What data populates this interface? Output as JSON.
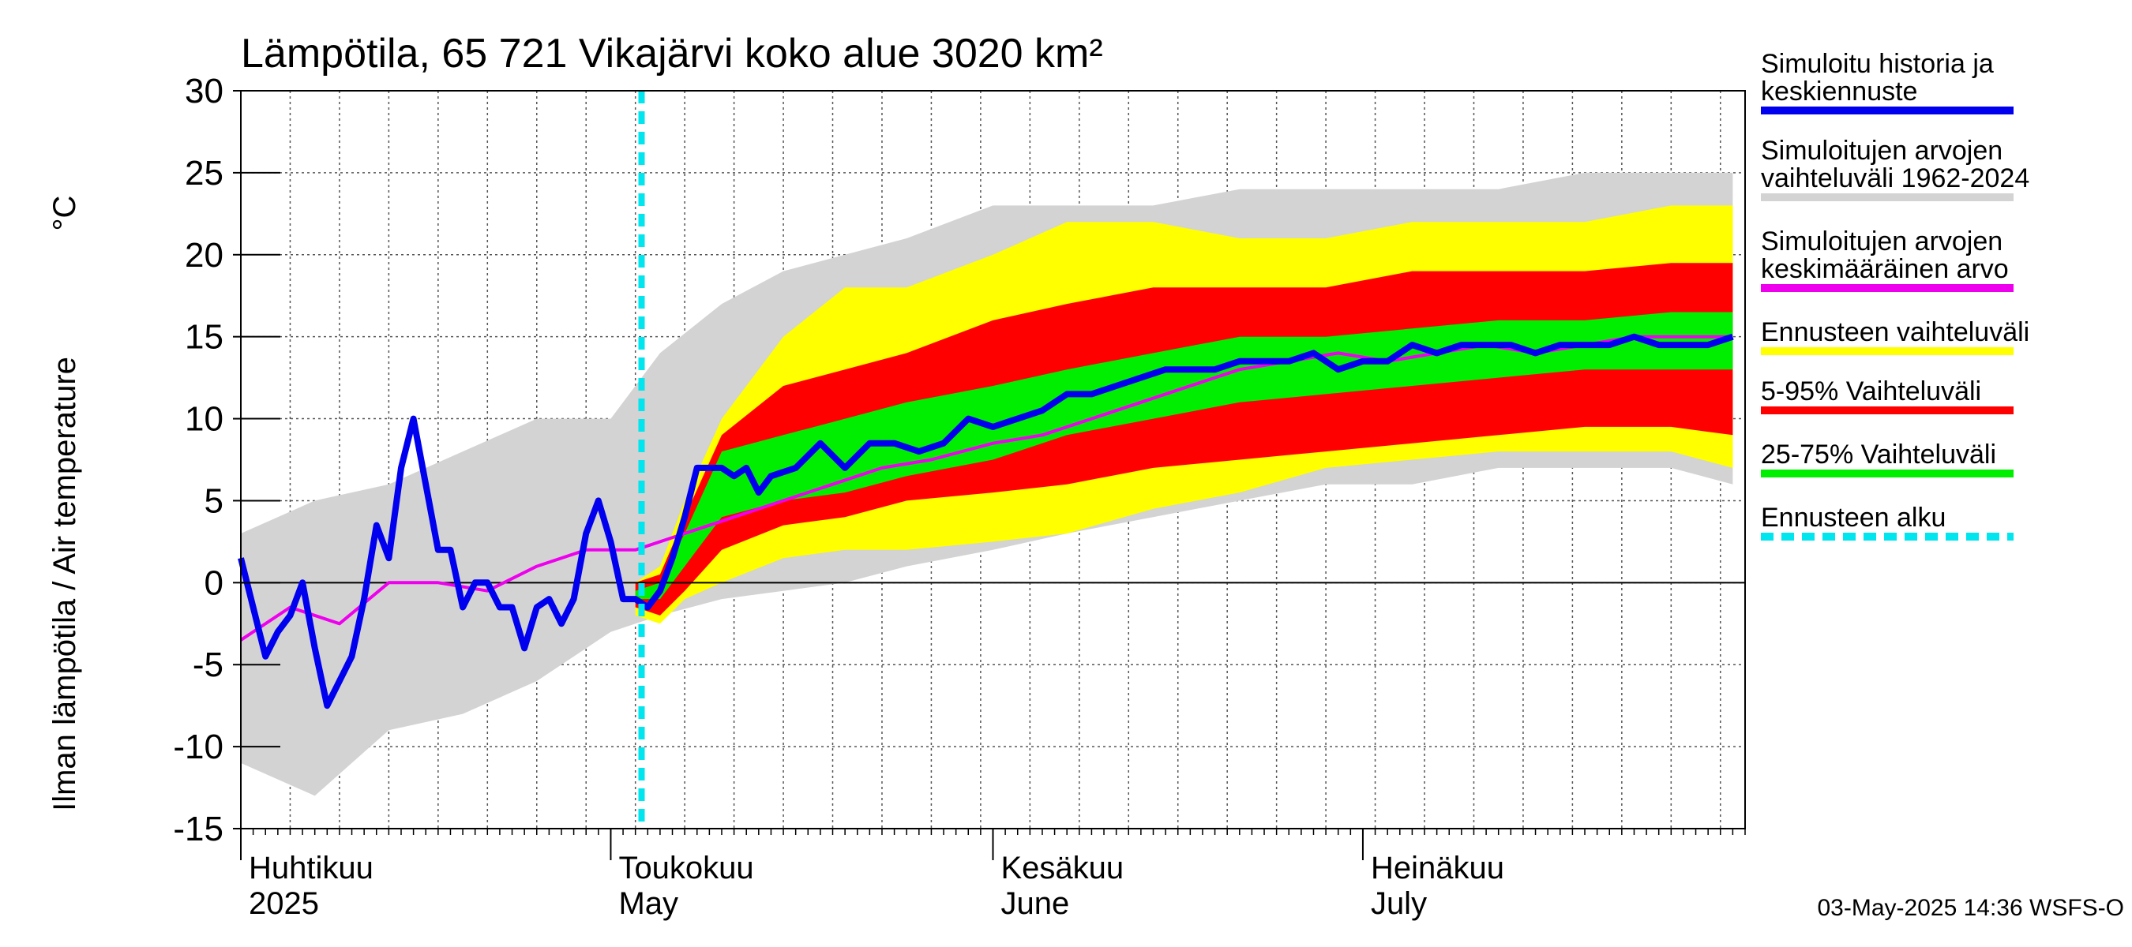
{
  "chart_data": {
    "type": "area",
    "title": "Lämpötila, 65 721 Vikajärvi koko alue 3020 km²",
    "ylabel": "Ilman lämpötila / Air temperature",
    "yunit": "°C",
    "x_range": [
      "2025-04-01",
      "2025-07-31"
    ],
    "ylim": [
      -15,
      30
    ],
    "yticks": [
      -15,
      -10,
      -5,
      0,
      5,
      10,
      15,
      20,
      25,
      30
    ],
    "grid": true,
    "legend_position": "right",
    "forecast_start": "2025-05-03",
    "months": [
      {
        "label": "Huhtikuu",
        "sublabel": "2025",
        "date": "2025-04-01"
      },
      {
        "label": "Toukokuu",
        "sublabel": "May",
        "date": "2025-05-01"
      },
      {
        "label": "Kesäkuu",
        "sublabel": "June",
        "date": "2025-06-01"
      },
      {
        "label": "Heinäkuu",
        "sublabel": "July",
        "date": "2025-07-01"
      }
    ],
    "series": [
      {
        "name": "Simuloitu historia ja keskiennuste",
        "color": "#0000ee",
        "x": [
          "2025-04-01",
          "2025-04-02",
          "2025-04-03",
          "2025-04-04",
          "2025-04-05",
          "2025-04-06",
          "2025-04-07",
          "2025-04-08",
          "2025-04-09",
          "2025-04-10",
          "2025-04-11",
          "2025-04-12",
          "2025-04-13",
          "2025-04-14",
          "2025-04-15",
          "2025-04-16",
          "2025-04-17",
          "2025-04-18",
          "2025-04-19",
          "2025-04-20",
          "2025-04-21",
          "2025-04-22",
          "2025-04-23",
          "2025-04-24",
          "2025-04-25",
          "2025-04-26",
          "2025-04-27",
          "2025-04-28",
          "2025-04-29",
          "2025-04-30",
          "2025-05-01",
          "2025-05-02",
          "2025-05-03",
          "2025-05-04",
          "2025-05-05",
          "2025-05-06",
          "2025-05-07",
          "2025-05-08",
          "2025-05-09",
          "2025-05-10",
          "2025-05-11",
          "2025-05-12",
          "2025-05-13",
          "2025-05-14",
          "2025-05-16",
          "2025-05-18",
          "2025-05-20",
          "2025-05-22",
          "2025-05-24",
          "2025-05-26",
          "2025-05-28",
          "2025-05-30",
          "2025-06-01",
          "2025-06-03",
          "2025-06-05",
          "2025-06-07",
          "2025-06-09",
          "2025-06-11",
          "2025-06-13",
          "2025-06-15",
          "2025-06-17",
          "2025-06-19",
          "2025-06-21",
          "2025-06-23",
          "2025-06-25",
          "2025-06-27",
          "2025-06-29",
          "2025-07-01",
          "2025-07-03",
          "2025-07-05",
          "2025-07-07",
          "2025-07-09",
          "2025-07-11",
          "2025-07-13",
          "2025-07-15",
          "2025-07-17",
          "2025-07-19",
          "2025-07-21",
          "2025-07-23",
          "2025-07-25",
          "2025-07-27",
          "2025-07-29",
          "2025-07-31"
        ],
        "values": [
          1.5,
          -1.5,
          -4.5,
          -3,
          -2,
          0,
          -4,
          -7.5,
          -6,
          -4.5,
          -1,
          3.5,
          1.5,
          7,
          10,
          6,
          2,
          2,
          -1.5,
          0,
          0,
          -1.5,
          -1.5,
          -4,
          -1.5,
          -1,
          -2.5,
          -1,
          3,
          5,
          2.5,
          -1,
          -1,
          -1.5,
          -0.5,
          1.5,
          4,
          7,
          7,
          7,
          6.5,
          7,
          5.5,
          6.5,
          7,
          8.5,
          7,
          8.5,
          8.5,
          8,
          8.5,
          10,
          9.5,
          10,
          10.5,
          11.5,
          11.5,
          12,
          12.5,
          13,
          13,
          13,
          13.5,
          13.5,
          13.5,
          14,
          13,
          13.5,
          13.5,
          14.5,
          14,
          14.5,
          14.5,
          14.5,
          14,
          14.5,
          14.5,
          14.5,
          15,
          14.5,
          14.5,
          14.5,
          15
        ]
      },
      {
        "name": "Simuloitujen arvojen keskimääräinen arvo",
        "color": "#ee00ee",
        "x": [
          "2025-04-01",
          "2025-04-05",
          "2025-04-09",
          "2025-04-13",
          "2025-04-17",
          "2025-04-21",
          "2025-04-25",
          "2025-04-29",
          "2025-05-03",
          "2025-05-07",
          "2025-05-11",
          "2025-05-15",
          "2025-05-19",
          "2025-05-23",
          "2025-05-27",
          "2025-06-01",
          "2025-06-05",
          "2025-06-09",
          "2025-06-13",
          "2025-06-17",
          "2025-06-21",
          "2025-06-25",
          "2025-06-29",
          "2025-07-03",
          "2025-07-07",
          "2025-07-11",
          "2025-07-15",
          "2025-07-19",
          "2025-07-23",
          "2025-07-27",
          "2025-07-31"
        ],
        "values": [
          -3.5,
          -1.5,
          -2.5,
          0,
          0,
          -0.5,
          1,
          2,
          2,
          3,
          4,
          5,
          6,
          7,
          7.5,
          8.5,
          9,
          10,
          11,
          12,
          13,
          13.5,
          14,
          13.5,
          14,
          14.5,
          14,
          14.5,
          15,
          15,
          15
        ]
      },
      {
        "name": "Simuloitujen arvojen vaihteluväli 1962-2024",
        "color": "#d3d3d3",
        "x": [
          "2025-04-01",
          "2025-04-07",
          "2025-04-13",
          "2025-04-19",
          "2025-04-25",
          "2025-05-01",
          "2025-05-05",
          "2025-05-10",
          "2025-05-15",
          "2025-05-20",
          "2025-05-25",
          "2025-06-01",
          "2025-06-07",
          "2025-06-14",
          "2025-06-21",
          "2025-06-28",
          "2025-07-05",
          "2025-07-12",
          "2025-07-19",
          "2025-07-26",
          "2025-07-31"
        ],
        "low": [
          -11,
          -13,
          -9,
          -8,
          -6,
          -3,
          -2,
          -1,
          -0.5,
          0,
          1,
          2,
          3,
          4,
          5,
          6,
          6,
          7,
          7,
          7,
          6
        ],
        "high": [
          3,
          5,
          6,
          8,
          10,
          10,
          14,
          17,
          19,
          20,
          21,
          23,
          23,
          23,
          24,
          24,
          24,
          24,
          25,
          25,
          25
        ]
      },
      {
        "name": "Ennusteen vaihteluväli",
        "color": "#ffff00",
        "x": [
          "2025-05-03",
          "2025-05-05",
          "2025-05-07",
          "2025-05-10",
          "2025-05-15",
          "2025-05-20",
          "2025-05-25",
          "2025-06-01",
          "2025-06-07",
          "2025-06-14",
          "2025-06-21",
          "2025-06-28",
          "2025-07-05",
          "2025-07-12",
          "2025-07-19",
          "2025-07-26",
          "2025-07-31"
        ],
        "low": [
          -2,
          -2.5,
          -1,
          0,
          1.5,
          2,
          2,
          2.5,
          3,
          4.5,
          5.5,
          7,
          7.5,
          8,
          8,
          8,
          7
        ],
        "high": [
          0,
          1,
          5,
          10,
          15,
          18,
          18,
          20,
          22,
          22,
          21,
          21,
          22,
          22,
          22,
          23,
          23
        ]
      },
      {
        "name": "5-95% Vaihteluväli",
        "color": "#ff0000",
        "x": [
          "2025-05-03",
          "2025-05-05",
          "2025-05-07",
          "2025-05-10",
          "2025-05-15",
          "2025-05-20",
          "2025-05-25",
          "2025-06-01",
          "2025-06-07",
          "2025-06-14",
          "2025-06-21",
          "2025-06-28",
          "2025-07-05",
          "2025-07-12",
          "2025-07-19",
          "2025-07-26",
          "2025-07-31"
        ],
        "low": [
          -1.5,
          -2,
          -0.5,
          2,
          3.5,
          4,
          5,
          5.5,
          6,
          7,
          7.5,
          8,
          8.5,
          9,
          9.5,
          9.5,
          9
        ],
        "high": [
          0,
          0.5,
          4,
          9,
          12,
          13,
          14,
          16,
          17,
          18,
          18,
          18,
          19,
          19,
          19,
          19.5,
          19.5
        ]
      },
      {
        "name": "25-75% Vaihteluväli",
        "color": "#00ee00",
        "x": [
          "2025-05-03",
          "2025-05-05",
          "2025-05-07",
          "2025-05-10",
          "2025-05-15",
          "2025-05-20",
          "2025-05-25",
          "2025-06-01",
          "2025-06-07",
          "2025-06-14",
          "2025-06-21",
          "2025-06-28",
          "2025-07-05",
          "2025-07-12",
          "2025-07-19",
          "2025-07-26",
          "2025-07-31"
        ],
        "low": [
          -1,
          -1,
          1,
          4,
          5,
          5.5,
          6.5,
          7.5,
          9,
          10,
          11,
          11.5,
          12,
          12.5,
          13,
          13,
          13
        ],
        "high": [
          -0.5,
          0,
          3,
          8,
          9,
          10,
          11,
          12,
          13,
          14,
          15,
          15,
          15.5,
          16,
          16,
          16.5,
          16.5
        ]
      }
    ],
    "legend": [
      {
        "label": "Simuloitu historia ja keskiennuste",
        "color": "#0000ee",
        "style": "solid"
      },
      {
        "label": "Simuloitujen arvojen vaihteluväli 1962-2024",
        "color": "#d3d3d3",
        "style": "solid"
      },
      {
        "label": "Simuloitujen arvojen keskimääräinen arvo",
        "color": "#ee00ee",
        "style": "solid"
      },
      {
        "label": "Ennusteen vaihteluväli",
        "color": "#ffff00",
        "style": "solid"
      },
      {
        "label": "5-95% Vaihteluväli",
        "color": "#ff0000",
        "style": "solid"
      },
      {
        "label": "25-75% Vaihteluväli",
        "color": "#00ee00",
        "style": "solid"
      },
      {
        "label": "Ennusteen alku",
        "color": "#00e5ee",
        "style": "dashed"
      }
    ],
    "footer": "03-May-2025 14:36 WSFS-O"
  }
}
